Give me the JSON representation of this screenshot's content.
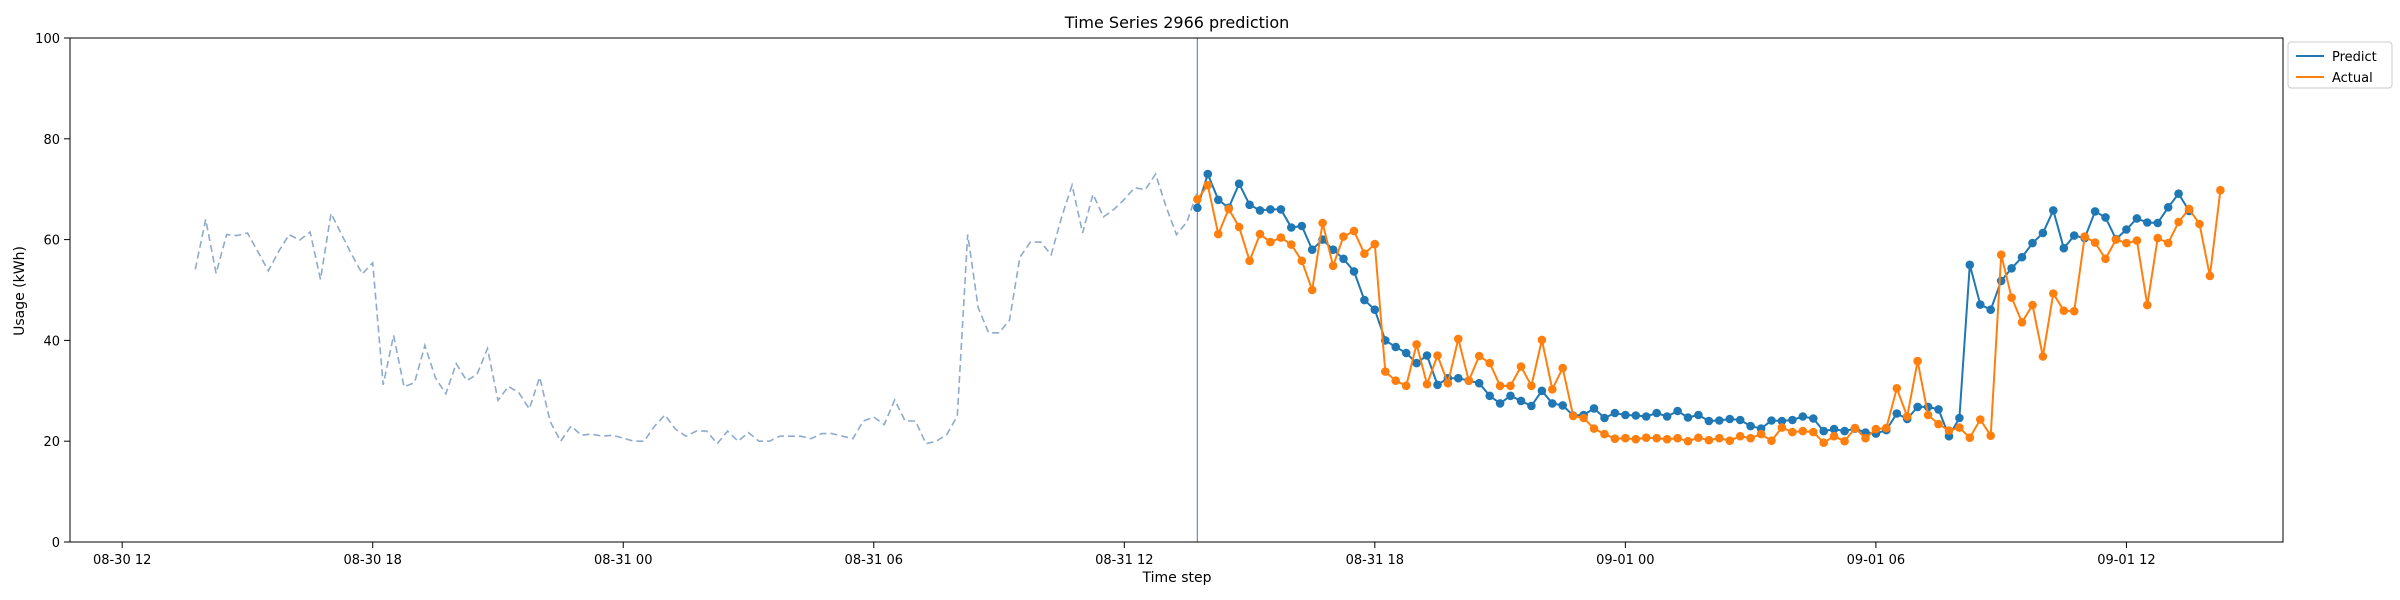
{
  "chart_data": {
    "type": "line",
    "title": "Time Series 2966 prediction",
    "xlabel": "Time step",
    "ylabel": "Usage (kWh)",
    "ylim": [
      0,
      100
    ],
    "yticks": [
      0,
      20,
      40,
      60,
      80,
      100
    ],
    "xlim": [
      "08-30 10:45",
      "09-01 15:45"
    ],
    "xticks": [
      {
        "t": "08-30 12:00",
        "label": "08-30 12"
      },
      {
        "t": "08-30 18:00",
        "label": "08-30 18"
      },
      {
        "t": "08-31 00:00",
        "label": "08-31 00"
      },
      {
        "t": "08-31 06:00",
        "label": "08-31 06"
      },
      {
        "t": "08-31 12:00",
        "label": "08-31 12"
      },
      {
        "t": "08-31 18:00",
        "label": "08-31 18"
      },
      {
        "t": "09-01 00:00",
        "label": "09-01 00"
      },
      {
        "t": "09-01 06:00",
        "label": "09-01 06"
      },
      {
        "t": "09-01 12:00",
        "label": "09-01 12"
      }
    ],
    "legend_position": "top-right",
    "divider_time": "08-31 13:45",
    "series": [
      {
        "name": "",
        "role": "history",
        "color": "#8eaacc",
        "style": "dashed",
        "start": "08-30 13:45",
        "step_minutes": 15,
        "values": [
          54.1,
          64.0,
          53.3,
          61.0,
          60.8,
          61.3,
          57.6,
          53.8,
          57.7,
          61.0,
          59.9,
          61.5,
          52.1,
          65.2,
          61.1,
          57.0,
          53.2,
          55.4,
          31.2,
          41.0,
          30.8,
          31.6,
          39.0,
          32.6,
          29.4,
          35.4,
          32.0,
          33.3,
          38.4,
          28.1,
          30.9,
          29.6,
          26.4,
          32.7,
          23.9,
          20.0,
          23.0,
          21.2,
          21.4,
          21.0,
          21.2,
          20.6,
          20.0,
          20.0,
          23.0,
          25.2,
          22.4,
          21.0,
          22.0,
          22.0,
          19.5,
          22.0,
          20.0,
          21.7,
          20.0,
          20.0,
          21.0,
          21.0,
          21.0,
          20.5,
          21.5,
          21.5,
          21.0,
          20.5,
          24.0,
          24.8,
          23.3,
          28.2,
          24.0,
          24.0,
          19.5,
          20.0,
          21.3,
          25.0,
          61.0,
          46.5,
          41.5,
          41.5,
          44.0,
          56.5,
          59.5,
          59.5,
          57.0,
          64.5,
          70.8,
          61.3,
          69.0,
          64.5,
          66.0,
          68.0,
          70.3,
          69.9,
          73.0,
          66.5,
          61.0,
          63.5,
          69.5
        ]
      },
      {
        "name": "Predict",
        "role": "predict",
        "color": "#1f77b4",
        "style": "solid-markers",
        "start": "08-31 13:45",
        "step_minutes": 15,
        "values": [
          66.3,
          73.0,
          67.9,
          66.3,
          71.1,
          66.9,
          65.8,
          66.0,
          66.0,
          62.4,
          62.7,
          58.0,
          60.0,
          58.0,
          56.2,
          53.7,
          48.0,
          46.1,
          40.0,
          38.7,
          37.5,
          35.5,
          37.0,
          31.2,
          32.5,
          32.5,
          32.0,
          31.5,
          29.0,
          27.5,
          29.0,
          28.0,
          27.0,
          30.0,
          27.5,
          27.1,
          25.1,
          25.2,
          26.5,
          24.6,
          25.6,
          25.2,
          25.1,
          24.9,
          25.6,
          24.9,
          26.0,
          24.7,
          25.2,
          24.0,
          24.1,
          24.4,
          24.2,
          23.0,
          22.5,
          24.1,
          24.0,
          24.2,
          24.9,
          24.5,
          22.0,
          22.4,
          22.0,
          22.5,
          21.7,
          21.5,
          22.2,
          25.5,
          24.4,
          26.8,
          26.8,
          26.3,
          21.0,
          24.6,
          55.0,
          47.1,
          46.1,
          51.8,
          54.3,
          56.5,
          59.3,
          61.3,
          65.8,
          58.3,
          60.8,
          60.3,
          65.6,
          64.4,
          60.1,
          62.0,
          64.2,
          63.4,
          63.3,
          66.4,
          69.1,
          65.7
        ]
      },
      {
        "name": "Actual",
        "role": "actual",
        "color": "#ff7f0e",
        "style": "solid-markers",
        "start": "08-31 13:45",
        "step_minutes": 15,
        "values": [
          68.0,
          70.8,
          61.1,
          66.1,
          62.5,
          55.8,
          61.1,
          59.5,
          60.4,
          59.0,
          55.8,
          50.0,
          63.3,
          54.8,
          60.6,
          61.7,
          57.2,
          59.1,
          33.8,
          32.0,
          31.0,
          39.2,
          31.3,
          37.0,
          31.5,
          40.3,
          32.0,
          36.9,
          35.5,
          31.0,
          31.0,
          34.8,
          31.0,
          40.1,
          30.3,
          34.5,
          25.0,
          24.6,
          22.5,
          21.4,
          20.5,
          20.6,
          20.4,
          20.7,
          20.6,
          20.4,
          20.6,
          20.0,
          20.7,
          20.2,
          20.6,
          20.1,
          21.0,
          20.6,
          21.4,
          20.1,
          22.7,
          21.8,
          22.0,
          21.8,
          19.7,
          21.0,
          20.0,
          22.6,
          20.6,
          22.4,
          22.6,
          30.5,
          24.9,
          35.9,
          25.2,
          23.4,
          22.1,
          22.7,
          20.7,
          24.3,
          21.1,
          57.0,
          48.5,
          43.6,
          47.0,
          36.8,
          49.3,
          45.9,
          45.8,
          60.6,
          59.4,
          56.2,
          60.0,
          59.3,
          59.8,
          47.0,
          60.3,
          59.3,
          63.5,
          66.1,
          63.1,
          52.8,
          69.8
        ]
      }
    ]
  }
}
